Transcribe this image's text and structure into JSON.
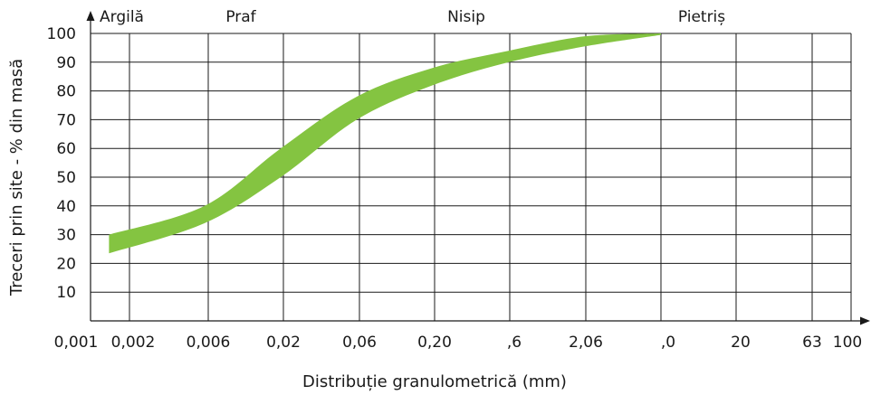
{
  "chart_data": {
    "type": "area",
    "title": "",
    "xlabel": "Distribuție granulometrică (mm)",
    "ylabel": "Treceri prin site - % din masă",
    "ylim": [
      0,
      100
    ],
    "y_ticks": [
      "10",
      "20",
      "30",
      "40",
      "50",
      "60",
      "70",
      "80",
      "90",
      "100"
    ],
    "x_tick_labels": [
      "0,001",
      "0,002",
      "0,006",
      "0,02",
      "0,06",
      "0,20",
      ",6",
      "2,06",
      ",0",
      "20",
      "63",
      "100"
    ],
    "regions": [
      "Argilă",
      "Praf",
      "Nisip",
      "Pietriș"
    ],
    "grid": true,
    "band_color": "#84c441",
    "band": {
      "x": [
        0.0014,
        0.006,
        0.02,
        0.06,
        0.2,
        0.6,
        2.06,
        6
      ],
      "lower": [
        23.5,
        34,
        50,
        70,
        82,
        90,
        95.5,
        99.5
      ],
      "upper": [
        30,
        40,
        60,
        78,
        88,
        94,
        99,
        100
      ]
    }
  }
}
